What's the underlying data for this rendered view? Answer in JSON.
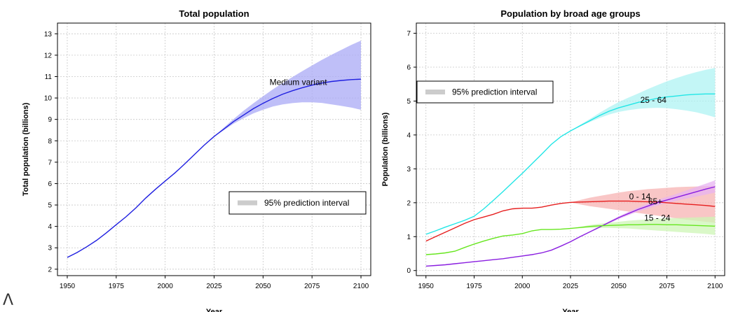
{
  "bottom_glyph": "Λ",
  "chart_data": [
    {
      "type": "line",
      "title": "Total population",
      "xlabel": "Year",
      "ylabel": "Total population (billions)",
      "xlim": [
        1945,
        2105
      ],
      "ylim": [
        1.7,
        13.5
      ],
      "x_ticks": [
        1950,
        1975,
        2000,
        2025,
        2050,
        2075,
        2100
      ],
      "y_ticks": [
        2,
        3,
        4,
        5,
        6,
        7,
        8,
        9,
        10,
        11,
        12,
        13
      ],
      "grid": true,
      "legend": {
        "position": "lower-right",
        "entries": [
          {
            "label": "95% prediction interval",
            "color": "#cccccc"
          }
        ]
      },
      "series": [
        {
          "name": "Medium variant",
          "color": "#1f1fe0",
          "band_color": "#aaaaf5",
          "label_at": [
            2068,
            10.6
          ],
          "x": [
            1950,
            1955,
            1960,
            1965,
            1970,
            1975,
            1980,
            1985,
            1990,
            1995,
            2000,
            2005,
            2010,
            2015,
            2020,
            2025,
            2030,
            2035,
            2040,
            2045,
            2050,
            2055,
            2060,
            2065,
            2070,
            2075,
            2080,
            2085,
            2090,
            2095,
            2100
          ],
          "y": [
            2.55,
            2.78,
            3.05,
            3.35,
            3.7,
            4.08,
            4.45,
            4.86,
            5.32,
            5.73,
            6.12,
            6.5,
            6.92,
            7.36,
            7.8,
            8.2,
            8.55,
            8.9,
            9.2,
            9.5,
            9.75,
            9.98,
            10.18,
            10.34,
            10.48,
            10.6,
            10.7,
            10.77,
            10.82,
            10.86,
            10.88
          ],
          "lower": [
            2.55,
            2.78,
            3.05,
            3.35,
            3.7,
            4.08,
            4.45,
            4.86,
            5.32,
            5.73,
            6.12,
            6.5,
            6.92,
            7.36,
            7.8,
            8.2,
            8.5,
            8.8,
            9.05,
            9.28,
            9.45,
            9.6,
            9.7,
            9.76,
            9.8,
            9.8,
            9.77,
            9.7,
            9.63,
            9.55,
            9.45
          ],
          "upper": [
            2.55,
            2.78,
            3.05,
            3.35,
            3.7,
            4.08,
            4.45,
            4.86,
            5.32,
            5.73,
            6.12,
            6.5,
            6.92,
            7.36,
            7.8,
            8.2,
            8.62,
            9.02,
            9.4,
            9.75,
            10.08,
            10.4,
            10.7,
            10.98,
            11.25,
            11.52,
            11.78,
            12.02,
            12.25,
            12.48,
            12.68
          ]
        }
      ]
    },
    {
      "type": "line",
      "title": "Population by broad age groups",
      "xlabel": "Year",
      "ylabel": "Population (billions)",
      "xlim": [
        1945,
        2105
      ],
      "ylim": [
        -0.15,
        7.3
      ],
      "x_ticks": [
        1950,
        1975,
        2000,
        2025,
        2050,
        2075,
        2100
      ],
      "y_ticks": [
        0,
        1,
        2,
        3,
        4,
        5,
        6,
        7
      ],
      "grid": true,
      "legend": {
        "position": "upper-left",
        "entries": [
          {
            "label": "95% prediction interval",
            "color": "#cccccc"
          }
        ]
      },
      "series": [
        {
          "name": "25 - 64",
          "color": "#22e6e6",
          "band_color": "#aff3f3",
          "label_at": [
            2068,
            4.95
          ],
          "x": [
            1950,
            1955,
            1960,
            1965,
            1970,
            1975,
            1980,
            1985,
            1990,
            1995,
            2000,
            2005,
            2010,
            2015,
            2020,
            2025,
            2030,
            2035,
            2040,
            2045,
            2050,
            2055,
            2060,
            2065,
            2070,
            2075,
            2080,
            2085,
            2090,
            2095,
            2100
          ],
          "y": [
            1.07,
            1.17,
            1.28,
            1.38,
            1.48,
            1.6,
            1.82,
            2.07,
            2.33,
            2.6,
            2.87,
            3.15,
            3.43,
            3.72,
            3.95,
            4.12,
            4.27,
            4.42,
            4.57,
            4.7,
            4.8,
            4.88,
            4.96,
            5.02,
            5.08,
            5.12,
            5.15,
            5.18,
            5.2,
            5.21,
            5.21
          ],
          "lower": [
            1.07,
            1.17,
            1.28,
            1.38,
            1.48,
            1.6,
            1.82,
            2.07,
            2.33,
            2.6,
            2.87,
            3.15,
            3.43,
            3.72,
            3.95,
            4.12,
            4.25,
            4.38,
            4.5,
            4.6,
            4.68,
            4.73,
            4.77,
            4.79,
            4.8,
            4.79,
            4.76,
            4.72,
            4.67,
            4.6,
            4.52
          ],
          "upper": [
            1.07,
            1.17,
            1.28,
            1.38,
            1.48,
            1.6,
            1.82,
            2.07,
            2.33,
            2.6,
            2.87,
            3.15,
            3.43,
            3.72,
            3.95,
            4.12,
            4.3,
            4.47,
            4.65,
            4.82,
            4.97,
            5.1,
            5.22,
            5.35,
            5.47,
            5.58,
            5.68,
            5.77,
            5.85,
            5.92,
            5.98
          ]
        },
        {
          "name": "0 - 14",
          "color": "#e61e1e",
          "band_color": "#f7b3b3",
          "label_at": [
            2061,
            2.1
          ],
          "x": [
            1950,
            1955,
            1960,
            1965,
            1970,
            1975,
            1980,
            1985,
            1990,
            1995,
            2000,
            2005,
            2010,
            2015,
            2020,
            2025,
            2030,
            2035,
            2040,
            2045,
            2050,
            2055,
            2060,
            2065,
            2070,
            2075,
            2080,
            2085,
            2090,
            2095,
            2100
          ],
          "y": [
            0.87,
            1.0,
            1.13,
            1.26,
            1.39,
            1.5,
            1.58,
            1.66,
            1.76,
            1.82,
            1.84,
            1.84,
            1.87,
            1.93,
            1.98,
            2.01,
            2.02,
            2.03,
            2.04,
            2.05,
            2.05,
            2.05,
            2.04,
            2.03,
            2.02,
            2.0,
            1.98,
            1.96,
            1.94,
            1.92,
            1.89
          ],
          "lower": [
            0.87,
            1.0,
            1.13,
            1.26,
            1.39,
            1.5,
            1.58,
            1.66,
            1.76,
            1.82,
            1.84,
            1.84,
            1.87,
            1.93,
            1.98,
            2.01,
            1.95,
            1.9,
            1.86,
            1.82,
            1.78,
            1.74,
            1.7,
            1.66,
            1.62,
            1.58,
            1.54,
            1.5,
            1.47,
            1.44,
            1.41
          ],
          "upper": [
            0.87,
            1.0,
            1.13,
            1.26,
            1.39,
            1.5,
            1.58,
            1.66,
            1.76,
            1.82,
            1.84,
            1.84,
            1.87,
            1.93,
            1.98,
            2.01,
            2.08,
            2.15,
            2.2,
            2.25,
            2.3,
            2.34,
            2.37,
            2.4,
            2.42,
            2.44,
            2.46,
            2.47,
            2.48,
            2.49,
            2.5
          ]
        },
        {
          "name": "65+",
          "color": "#8a1ee0",
          "band_color": "#e7b3f2",
          "label_at": [
            2069,
            1.95
          ],
          "x": [
            1950,
            1955,
            1960,
            1965,
            1970,
            1975,
            1980,
            1985,
            1990,
            1995,
            2000,
            2005,
            2010,
            2015,
            2020,
            2025,
            2030,
            2035,
            2040,
            2045,
            2050,
            2055,
            2060,
            2065,
            2070,
            2075,
            2080,
            2085,
            2090,
            2095,
            2100
          ],
          "y": [
            0.13,
            0.15,
            0.17,
            0.2,
            0.23,
            0.26,
            0.29,
            0.32,
            0.35,
            0.39,
            0.43,
            0.47,
            0.52,
            0.6,
            0.72,
            0.85,
            1.0,
            1.14,
            1.28,
            1.42,
            1.56,
            1.68,
            1.8,
            1.9,
            2.0,
            2.08,
            2.16,
            2.24,
            2.32,
            2.4,
            2.47
          ],
          "lower": [
            0.13,
            0.15,
            0.17,
            0.2,
            0.23,
            0.26,
            0.29,
            0.32,
            0.35,
            0.39,
            0.43,
            0.47,
            0.52,
            0.6,
            0.72,
            0.85,
            0.99,
            1.13,
            1.26,
            1.39,
            1.52,
            1.63,
            1.74,
            1.83,
            1.92,
            1.99,
            2.06,
            2.12,
            2.18,
            2.24,
            2.3
          ],
          "upper": [
            0.13,
            0.15,
            0.17,
            0.2,
            0.23,
            0.26,
            0.29,
            0.32,
            0.35,
            0.39,
            0.43,
            0.47,
            0.52,
            0.6,
            0.72,
            0.85,
            1.01,
            1.15,
            1.3,
            1.45,
            1.6,
            1.73,
            1.86,
            1.97,
            2.08,
            2.17,
            2.26,
            2.36,
            2.46,
            2.56,
            2.66
          ]
        },
        {
          "name": "15 - 24",
          "color": "#66e61e",
          "band_color": "#cdf5b5",
          "label_at": [
            2070,
            1.47
          ],
          "x": [
            1950,
            1955,
            1960,
            1965,
            1970,
            1975,
            1980,
            1985,
            1990,
            1995,
            2000,
            2005,
            2010,
            2015,
            2020,
            2025,
            2030,
            2035,
            2040,
            2045,
            2050,
            2055,
            2060,
            2065,
            2070,
            2075,
            2080,
            2085,
            2090,
            2095,
            2100
          ],
          "y": [
            0.47,
            0.49,
            0.52,
            0.57,
            0.68,
            0.78,
            0.87,
            0.95,
            1.02,
            1.05,
            1.09,
            1.17,
            1.21,
            1.21,
            1.22,
            1.24,
            1.27,
            1.3,
            1.32,
            1.33,
            1.34,
            1.35,
            1.35,
            1.36,
            1.36,
            1.35,
            1.35,
            1.34,
            1.33,
            1.32,
            1.31
          ],
          "lower": [
            0.47,
            0.49,
            0.52,
            0.57,
            0.68,
            0.78,
            0.87,
            0.95,
            1.02,
            1.05,
            1.09,
            1.17,
            1.21,
            1.21,
            1.22,
            1.24,
            1.25,
            1.26,
            1.26,
            1.26,
            1.25,
            1.24,
            1.22,
            1.2,
            1.18,
            1.16,
            1.14,
            1.12,
            1.1,
            1.08,
            1.05
          ],
          "upper": [
            0.47,
            0.49,
            0.52,
            0.57,
            0.68,
            0.78,
            0.87,
            0.95,
            1.02,
            1.05,
            1.09,
            1.17,
            1.21,
            1.21,
            1.22,
            1.24,
            1.29,
            1.34,
            1.38,
            1.41,
            1.44,
            1.47,
            1.49,
            1.51,
            1.53,
            1.54,
            1.55,
            1.56,
            1.57,
            1.58,
            1.59
          ]
        }
      ]
    }
  ]
}
